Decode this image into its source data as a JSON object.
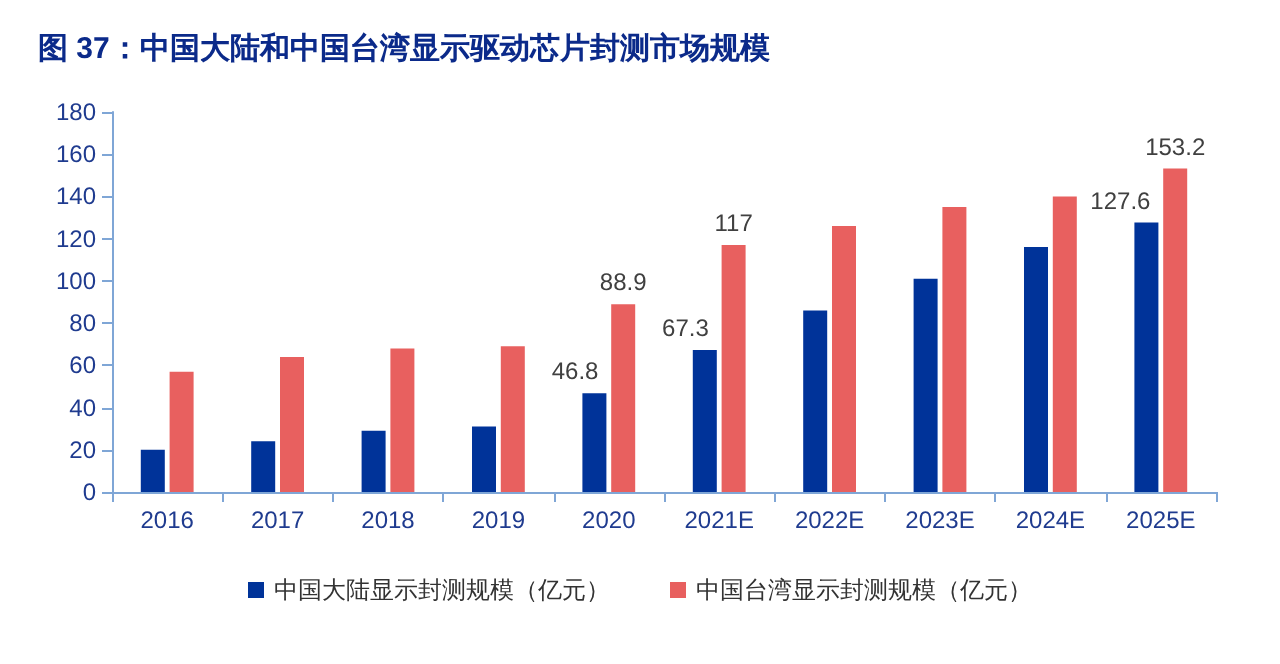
{
  "chart_data": {
    "type": "bar",
    "title": "图 37：中国大陆和中国台湾显示驱动芯片封测市场规模",
    "categories": [
      "2016",
      "2017",
      "2018",
      "2019",
      "2020",
      "2021E",
      "2022E",
      "2023E",
      "2024E",
      "2025E"
    ],
    "series": [
      {
        "name": "中国大陆显示封测规模（亿元）",
        "color": "#003399",
        "values": [
          20,
          24,
          29,
          31,
          46.8,
          67.3,
          86,
          101,
          116,
          127.6
        ],
        "value_labels": [
          null,
          null,
          null,
          null,
          "46.8",
          "67.3",
          null,
          null,
          null,
          "127.6"
        ]
      },
      {
        "name": "中国台湾显示封测规模（亿元）",
        "color": "#e8605f",
        "values": [
          57,
          64,
          68,
          69,
          88.9,
          117,
          126,
          135,
          140,
          153.2
        ],
        "value_labels": [
          null,
          null,
          null,
          null,
          "88.9",
          "117",
          null,
          null,
          null,
          "153.2"
        ]
      }
    ],
    "ylim": [
      0,
      180
    ],
    "yticks": [
      0,
      20,
      40,
      60,
      80,
      100,
      120,
      140,
      160,
      180
    ],
    "grid": false,
    "legend": "bottom"
  }
}
